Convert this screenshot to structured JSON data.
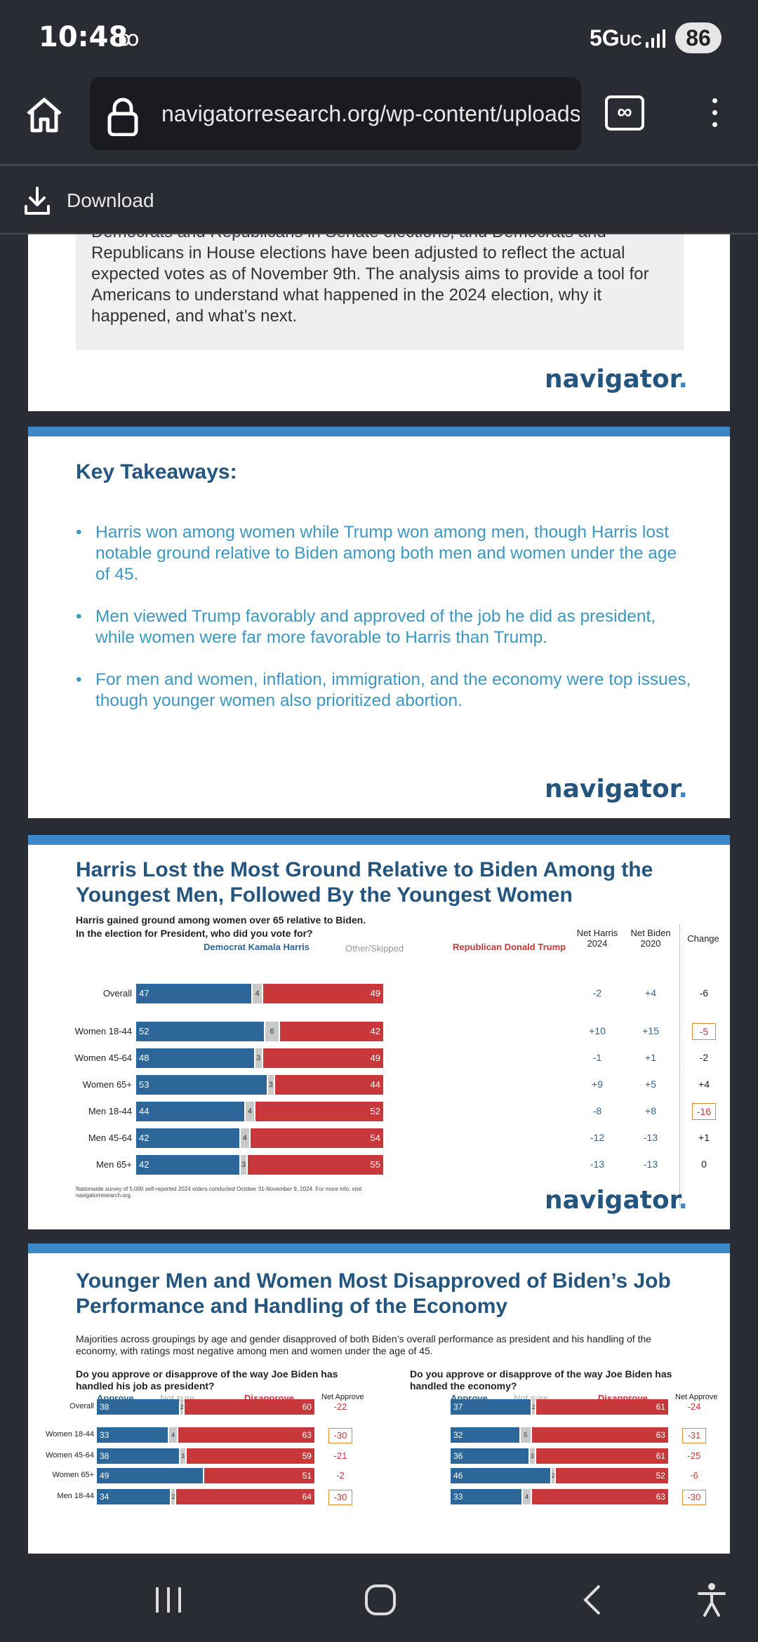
{
  "status": {
    "time": "10:48",
    "network": "5G",
    "network_suffix": "UC",
    "battery": "86"
  },
  "browser": {
    "url": "navigatorresearch.org/wp-content/uploads",
    "download_label": "Download"
  },
  "slide1": {
    "intro": "Democrats and Republicans in Senate elections, and Democrats and Republicans in House elections have been adjusted to reflect the actual expected votes as of November 9th. The analysis aims to provide a tool for Americans to understand what happened in the 2024 election, why it happened, and what’s next.",
    "logo": "navigator"
  },
  "slide2": {
    "title": "Key Takeaways:",
    "bullets": [
      "Harris won among women while Trump won among men, though Harris lost notable ground relative to Biden among both men and women under the age of 45.",
      "Men viewed Trump favorably and approved of the job he did as president, while women were far more favorable to Harris than Trump.",
      "For men and women, inflation, immigration, and the economy were top issues, though younger women also prioritized abortion."
    ],
    "logo": "navigator"
  },
  "slide3": {
    "title": "Harris Lost the Most Ground Relative to Biden Among the Youngest Men, Followed By the Youngest Women",
    "subtitle": "Harris gained ground among women over 65 relative to Biden.",
    "question": "In the election for President, who did you vote for?",
    "legend_dem": "Democrat Kamala Harris",
    "legend_other": "Other/Skipped",
    "legend_rep": "Republican Donald Trump",
    "col_net_harris": "Net Harris 2024",
    "col_net_biden": "Net Biden 2020",
    "col_change": "Change",
    "footnote": "Nationwide survey of 5,000 self-reported 2024 voters conducted October 31-November 9, 2024. For more info, visit navigatorresearch.org.",
    "logo": "navigator"
  },
  "slide4": {
    "title": "Younger Men and Women Most Disapproved of Biden’s Job Performance and Handling of the Economy",
    "subtitle": "Majorities across groupings by age and gender disapproved of both Biden’s overall performance as president and his handling of the economy, with ratings most negative among men and women under the age of 45.",
    "q1": "Do you approve or disapprove of the way Joe Biden has handled his job as president?",
    "q2": "Do you approve or disapprove of the way Joe Biden has handled the economy?",
    "approve": "Approve",
    "not_sure": "Not sure",
    "disapprove": "Disapprove",
    "net_approve": "Net Approve"
  },
  "chart_data": [
    {
      "type": "bar",
      "title": "Harris Lost the Most Ground Relative to Biden Among the Youngest Men, Followed By the Youngest Women",
      "categories": [
        "Overall",
        "Women 18-44",
        "Women 45-64",
        "Women 65+",
        "Men 18-44",
        "Men 45-64",
        "Men 65+"
      ],
      "series": [
        {
          "name": "Democrat Kamala Harris",
          "values": [
            47,
            52,
            48,
            53,
            44,
            42,
            42
          ]
        },
        {
          "name": "Other/Skipped",
          "values": [
            4,
            6,
            3,
            3,
            4,
            4,
            3
          ]
        },
        {
          "name": "Republican Donald Trump",
          "values": [
            49,
            42,
            49,
            44,
            52,
            54,
            55
          ]
        }
      ],
      "net_harris_2024": [
        "-2",
        "+10",
        "-1",
        "+9",
        "-8",
        "-12",
        "-13"
      ],
      "net_biden_2020": [
        "+4",
        "+15",
        "+1",
        "+5",
        "+8",
        "-13",
        "-13"
      ],
      "change": [
        "-6",
        "-5",
        "-2",
        "+4",
        "-16",
        "+1",
        "0"
      ],
      "change_boxed": [
        false,
        true,
        false,
        false,
        true,
        false,
        false
      ]
    },
    {
      "type": "bar",
      "title": "Do you approve or disapprove of the way Joe Biden has handled his job as president?",
      "categories": [
        "Overall",
        "Women 18-44",
        "Women 45-64",
        "Women 65+",
        "Men 18-44"
      ],
      "series": [
        {
          "name": "Approve",
          "values": [
            38,
            33,
            38,
            49,
            34
          ]
        },
        {
          "name": "Not sure",
          "values": [
            2,
            4,
            3,
            0,
            2
          ]
        },
        {
          "name": "Disapprove",
          "values": [
            60,
            63,
            59,
            51,
            64
          ]
        }
      ],
      "net_approve": [
        "-22",
        "-30",
        "-21",
        "-2",
        "-30"
      ],
      "net_boxed": [
        false,
        true,
        false,
        false,
        true
      ]
    },
    {
      "type": "bar",
      "title": "Do you approve or disapprove of the way Joe Biden has handled the economy?",
      "categories": [
        "Overall",
        "Women 18-44",
        "Women 45-64",
        "Women 65+",
        "Men 18-44"
      ],
      "series": [
        {
          "name": "Approve",
          "values": [
            37,
            32,
            36,
            46,
            33
          ]
        },
        {
          "name": "Not sure",
          "values": [
            2,
            5,
            3,
            2,
            4
          ]
        },
        {
          "name": "Disapprove",
          "values": [
            61,
            63,
            61,
            52,
            63
          ]
        }
      ],
      "net_approve": [
        "-24",
        "-31",
        "-25",
        "-6",
        "-30"
      ],
      "net_boxed": [
        false,
        true,
        false,
        false,
        true
      ]
    }
  ]
}
